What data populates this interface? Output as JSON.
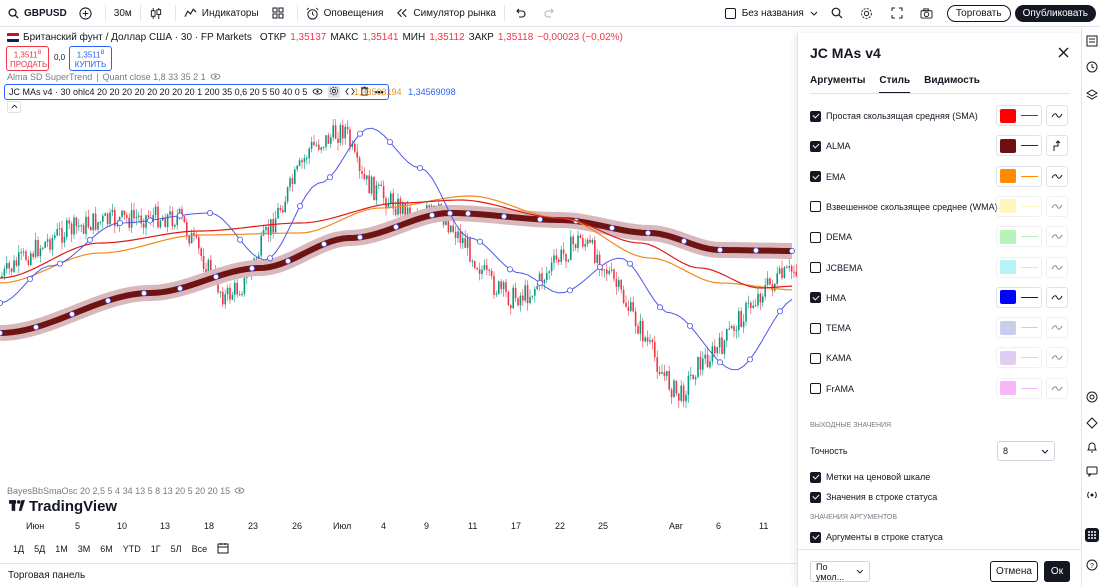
{
  "toolbar": {
    "symbol": "GBPUSD",
    "interval": "30м",
    "indicators_label": "Индикаторы",
    "alerts_label": "Оповещения",
    "replay_label": "Симулятор рынка",
    "layout_name": "Без названия",
    "trading_label": "Торговать",
    "publish_label": "Опубликовать"
  },
  "chart": {
    "pair_title": "Британский фунт / Доллар США · 30 · FP Markets",
    "open_label": "ОТКР",
    "open_value": "1,35137",
    "high_label": "МАКС",
    "high_value": "1,35141",
    "low_label": "МИН",
    "low_value": "1,35112",
    "close_label": "ЗАКР",
    "close_value": "1,35118",
    "change": "−0,00023 (−0,02%)",
    "sell_price": "1,3511",
    "sell_sup": "8",
    "sell_label": "ПРОДАТЬ",
    "spread": "0,0",
    "buy_price": "1,3511",
    "buy_sup": "8",
    "buy_label": "КУПИТЬ",
    "indicator1": "Alma SD SuperTrend",
    "indicator1_params": "Quant close 1,8 33 35 2 1",
    "indicator2": "JC MAs v4 · 30 ohlc4 20 20 20 20 20 20 20 20 1 200 35 0,6 20 5 50 40 0 5",
    "indicator2_val1": "1,33503194",
    "indicator2_val2": "1,34569098",
    "indicator3": "BayesBbSmaOsc 20 2,5 5 4 34 13 5 8 13 20 5 20 20 15",
    "logo_text": "TradingView",
    "colors": {
      "bull": "#089981",
      "bear": "#f23645",
      "sma": "#e01919",
      "alma": "#6e1414",
      "ema": "#f28a1e",
      "hma": "#4d58e8",
      "alma_glow": "#d9b8bc"
    },
    "x_labels": [
      "Июн",
      "5",
      "10",
      "13",
      "18",
      "23",
      "26",
      "Июл",
      "4",
      "9",
      "11",
      "17",
      "22",
      "25",
      "Авг",
      "6",
      "11"
    ]
  },
  "timeframes": [
    "1Д",
    "5Д",
    "1М",
    "3М",
    "6М",
    "YTD",
    "1Г",
    "5Л",
    "Все"
  ],
  "bottom_panel": "Торговая панель",
  "dialog": {
    "title": "JC MAs v4",
    "tabs": [
      "Аргументы",
      "Стиль",
      "Видимость"
    ],
    "active_tab": "Стиль",
    "rows": [
      {
        "label": "Простая скользящая средняя (SMA)",
        "checked": true,
        "color": "#ff0000"
      },
      {
        "label": "ALMA",
        "checked": true,
        "color": "#6e1010"
      },
      {
        "label": "EMA",
        "checked": true,
        "color": "#ff8c00"
      },
      {
        "label": "Взвешенное скользящее среднее (WMA)",
        "checked": false,
        "color": "#fff07a"
      },
      {
        "label": "DEMA",
        "checked": false,
        "color": "#6fe96f"
      },
      {
        "label": "JCBEMA",
        "checked": false,
        "color": "#6ee8f4"
      },
      {
        "label": "HMA",
        "checked": true,
        "color": "#0000ff"
      },
      {
        "label": "TEMA",
        "checked": false,
        "color": "#9b9bdb"
      },
      {
        "label": "KAMA",
        "checked": false,
        "color": "#c49be6"
      },
      {
        "label": "FrAMA",
        "checked": false,
        "color": "#f26ef0"
      }
    ],
    "output_section": "ВЫХОДНЫЕ ЗНАЧЕНИЯ",
    "precision_label": "Точность",
    "precision_value": "8",
    "price_scale_label": "Метки на ценовой шкале",
    "status_values_label": "Значения в строке статуса",
    "args_section": "ЗНАЧЕНИЯ АРГУМЕНТОВ",
    "status_args_label": "Аргументы в строке статуса",
    "defaults_label": "По умол...",
    "cancel_label": "Отмена",
    "ok_label": "Ок"
  }
}
